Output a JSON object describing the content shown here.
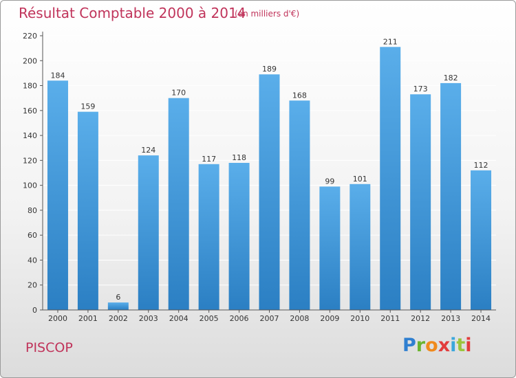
{
  "header": {
    "title": "Résultat Comptable 2000 à 2014",
    "subtitle": "(en milliers d'€)"
  },
  "footer": {
    "commune": "PISCOP",
    "logo_text": "Proxiti"
  },
  "colors": {
    "title": "#c0335a",
    "bar_top": "#5aaeea",
    "bar_bottom": "#2b7fc3",
    "axis": "#555555",
    "grid": "#ffffff"
  },
  "chart_data": {
    "type": "bar",
    "title": "Résultat Comptable 2000 à 2014",
    "subtitle": "(en milliers d'€)",
    "categories": [
      "2000",
      "2001",
      "2002",
      "2003",
      "2004",
      "2005",
      "2006",
      "2007",
      "2008",
      "2009",
      "2010",
      "2011",
      "2012",
      "2013",
      "2014"
    ],
    "values": [
      184,
      159,
      6,
      124,
      170,
      117,
      118,
      189,
      168,
      99,
      101,
      211,
      173,
      182,
      112
    ],
    "ylim": [
      0,
      220
    ],
    "yticks": [
      0,
      20,
      40,
      60,
      80,
      100,
      120,
      140,
      160,
      180,
      200,
      220
    ],
    "grid": true,
    "data_labels": true
  }
}
